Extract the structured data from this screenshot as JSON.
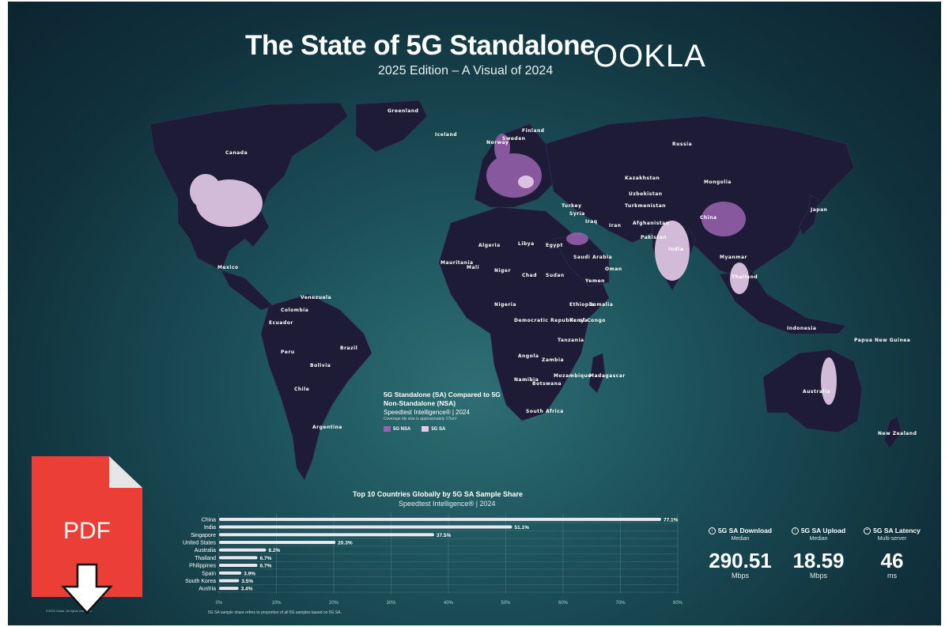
{
  "header": {
    "title": "The State of 5G Standalone",
    "subtitle": "2025 Edition – A Visual of 2024",
    "logo_text": "OOKLA"
  },
  "map": {
    "countries": [
      "Canada",
      "Russia",
      "Greenland",
      "Iceland",
      "Mexico",
      "Brazil",
      "Peru",
      "Bolivia",
      "Chile",
      "Argentina",
      "Colombia",
      "Venezuela",
      "Ecuador",
      "Algeria",
      "Libya",
      "Egypt",
      "Mali",
      "Niger",
      "Chad",
      "Sudan",
      "Mauritania",
      "Ethiopia",
      "Nigeria",
      "Democratic Republic of Congo",
      "Angola",
      "Namibia",
      "Zambia",
      "Tanzania",
      "Kenya",
      "Botswana",
      "South Africa",
      "Somalia",
      "Kazakhstan",
      "Mongolia",
      "China",
      "India",
      "Iran",
      "Saudi Arabia",
      "Turkey",
      "Afghanistan",
      "Pakistan",
      "Turkmenistan",
      "Australia",
      "Thailand",
      "Indonesia",
      "Myanmar",
      "Japan",
      "Finland",
      "Sweden",
      "Norway",
      "Papua New Guinea",
      "New Zealand",
      "Madagascar",
      "Mozambique",
      "Uzbekistan",
      "Yemen",
      "Iraq",
      "Syria",
      "Oman"
    ],
    "legend": {
      "title": "5G Standalone (SA) Compared to 5G Non-Standalone (NSA)",
      "source": "Speedtest Intelligence® | 2024",
      "note": "Coverage tile size is approximately 17km²",
      "items": [
        {
          "label": "5G NSA",
          "color": "#9a63b0"
        },
        {
          "label": "5G SA",
          "color": "#e5cdea"
        }
      ]
    }
  },
  "chart_data": {
    "type": "bar",
    "orientation": "horizontal",
    "title": "Top 10 Countries Globally by 5G SA Sample Share",
    "subtitle": "Speedtest Intelligence® | 2024",
    "categories": [
      "China",
      "India",
      "Singapore",
      "United States",
      "Australia",
      "Thailand",
      "Philippines",
      "Spain",
      "South Korea",
      "Austria"
    ],
    "values": [
      77.1,
      51.1,
      37.5,
      20.3,
      8.2,
      6.7,
      6.7,
      3.9,
      3.5,
      3.4
    ],
    "value_labels": [
      "77.1%",
      "51.1%",
      "37.5%",
      "20.3%",
      "8.2%",
      "6.7%",
      "6.7%",
      "3.9%",
      "3.5%",
      "3.4%"
    ],
    "xlim": [
      0,
      80
    ],
    "xticks": [
      "0%",
      "10%",
      "20%",
      "30%",
      "40%",
      "50%",
      "60%",
      "70%",
      "80%"
    ],
    "grid": true,
    "bar_color": "#e9e6ee",
    "note": "5G SA sample share refers to proportion of all 5G samples based on 5G SA."
  },
  "metrics": [
    {
      "title": "5G SA Download",
      "icon": "download-icon",
      "sub": "Median",
      "value": "290.51",
      "unit": "Mbps"
    },
    {
      "title": "5G SA Upload",
      "icon": "upload-icon",
      "sub": "Median",
      "value": "18.59",
      "unit": "Mbps"
    },
    {
      "title": "5G SA Latency",
      "icon": "latency-icon",
      "sub": "Multi-server",
      "value": "46",
      "unit": "ms"
    }
  ],
  "footer": {
    "copyright": "©2025 Ookla. All rights reserved."
  },
  "pdf": {
    "label": "PDF",
    "icon": "pdf-download-icon"
  },
  "colors": {
    "land": "#1d1b36",
    "background": "#1b4e57",
    "nsa": "#9a63b0",
    "sa": "#e5cdea"
  }
}
